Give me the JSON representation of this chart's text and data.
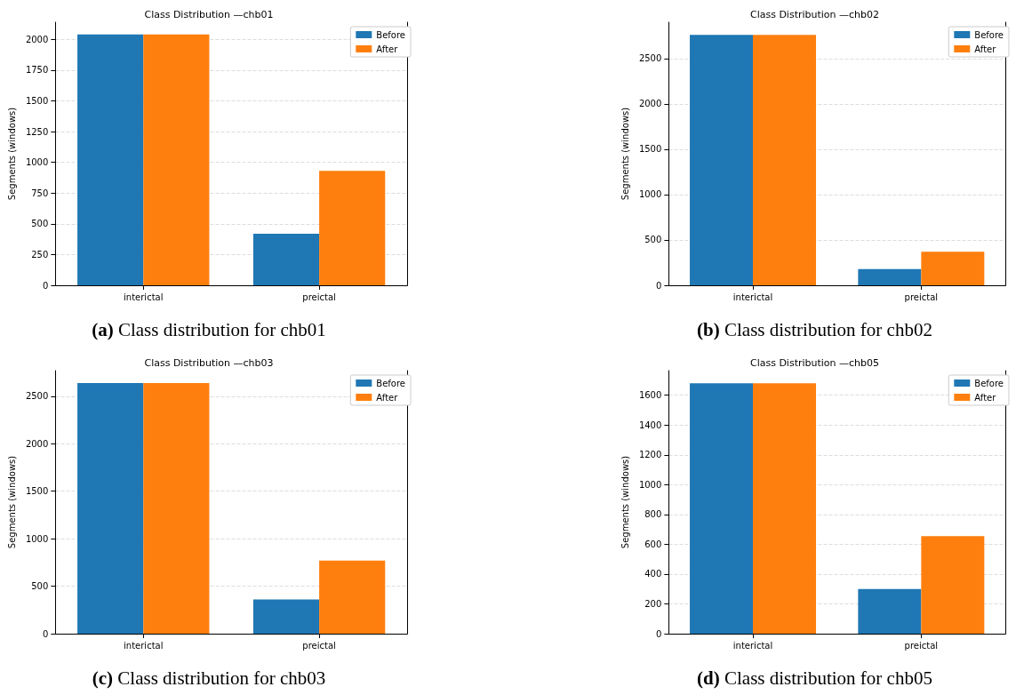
{
  "chart_data": [
    {
      "type": "bar",
      "title": "Class Distribution —chb01",
      "ylabel": "Segments (windows)",
      "categories": [
        "interictal",
        "preictal"
      ],
      "series": [
        {
          "name": "Before",
          "color": "#1f77b4",
          "values": [
            2040,
            420
          ]
        },
        {
          "name": "After",
          "color": "#ff7f0e",
          "values": [
            2040,
            930
          ]
        }
      ],
      "ylim": [
        0,
        2140
      ],
      "yticks": [
        0,
        250,
        500,
        750,
        1000,
        1250,
        1500,
        1750,
        2000
      ],
      "grid": "y",
      "legend": "top right",
      "annotations": [
        "(a) Class distribution for chb01"
      ]
    },
    {
      "type": "bar",
      "title": "Class Distribution —chb02",
      "ylabel": "Segments (windows)",
      "categories": [
        "interictal",
        "preictal"
      ],
      "series": [
        {
          "name": "Before",
          "color": "#1f77b4",
          "values": [
            2760,
            180
          ]
        },
        {
          "name": "After",
          "color": "#ff7f0e",
          "values": [
            2760,
            370
          ]
        }
      ],
      "ylim": [
        0,
        2900
      ],
      "yticks": [
        0,
        500,
        1000,
        1500,
        2000,
        2500
      ],
      "grid": "y",
      "legend": "top right",
      "annotations": [
        "(b) Class distribution for chb02"
      ]
    },
    {
      "type": "bar",
      "title": "Class Distribution —chb03",
      "ylabel": "Segments (windows)",
      "categories": [
        "interictal",
        "preictal"
      ],
      "series": [
        {
          "name": "Before",
          "color": "#1f77b4",
          "values": [
            2640,
            360
          ]
        },
        {
          "name": "After",
          "color": "#ff7f0e",
          "values": [
            2640,
            770
          ]
        }
      ],
      "ylim": [
        0,
        2770
      ],
      "yticks": [
        0,
        500,
        1000,
        1500,
        2000,
        2500
      ],
      "grid": "y",
      "legend": "top right",
      "annotations": [
        "(c) Class distribution for chb03"
      ]
    },
    {
      "type": "bar",
      "title": "Class Distribution —chb05",
      "ylabel": "Segments (windows)",
      "categories": [
        "interictal",
        "preictal"
      ],
      "series": [
        {
          "name": "Before",
          "color": "#1f77b4",
          "values": [
            1680,
            300
          ]
        },
        {
          "name": "After",
          "color": "#ff7f0e",
          "values": [
            1680,
            655
          ]
        }
      ],
      "ylim": [
        0,
        1765
      ],
      "yticks": [
        0,
        200,
        400,
        600,
        800,
        1000,
        1200,
        1400,
        1600
      ],
      "grid": "y",
      "legend": "top right",
      "annotations": [
        "(d) Class distribution for chb05"
      ]
    }
  ]
}
